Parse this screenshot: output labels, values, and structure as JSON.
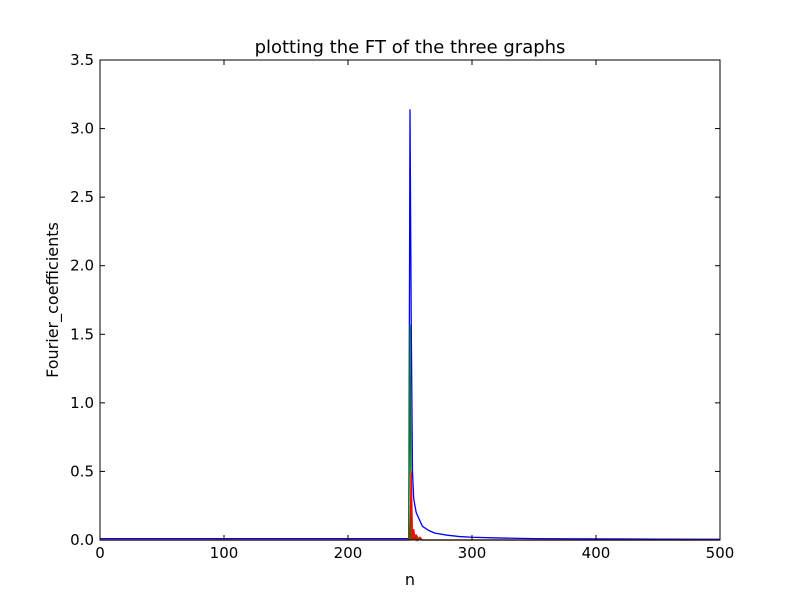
{
  "chart_data": {
    "type": "line",
    "title": "plotting the FT of the three graphs",
    "xlabel": "n",
    "ylabel": "Fourier_coefficients",
    "xlim": [
      0,
      500
    ],
    "ylim": [
      0,
      3.5
    ],
    "x_ticks": [
      0,
      100,
      200,
      300,
      400,
      500
    ],
    "x_tick_labels": [
      "0",
      "100",
      "200",
      "300",
      "400",
      "500"
    ],
    "y_ticks": [
      0.0,
      0.5,
      1.0,
      1.5,
      2.0,
      2.5,
      3.0,
      3.5
    ],
    "y_tick_labels": [
      "0.0",
      "0.5",
      "1.0",
      "1.5",
      "2.0",
      "2.5",
      "3.0",
      "3.5"
    ],
    "grid": false,
    "legend": "none",
    "series": [
      {
        "color": "#0000ff",
        "x": [
          0,
          100,
          200,
          249,
          250,
          251,
          252,
          253,
          255,
          260,
          265,
          270,
          280,
          290,
          300,
          320,
          350,
          400,
          450,
          500
        ],
        "y": [
          0.01,
          0.01,
          0.01,
          0.01,
          3.14,
          1.57,
          0.5,
          0.3,
          0.2,
          0.1,
          0.07,
          0.05,
          0.035,
          0.025,
          0.02,
          0.015,
          0.01,
          0.008,
          0.006,
          0.005
        ]
      },
      {
        "color": "#008000",
        "x": [
          0,
          100,
          200,
          249,
          250,
          251,
          252,
          253,
          254,
          255,
          256,
          257,
          258,
          260,
          270,
          300,
          400,
          500
        ],
        "y": [
          0.0,
          0.0,
          0.0,
          0.0,
          1.57,
          0.0,
          0.05,
          0.0,
          0.03,
          0.0,
          0.02,
          0.0,
          0.01,
          0.0,
          0.0,
          0.0,
          0.0,
          0.0
        ]
      },
      {
        "color": "#ff0000",
        "x": [
          0,
          100,
          200,
          249,
          250,
          251,
          252,
          253,
          254,
          255,
          256,
          258,
          260,
          265,
          270,
          300,
          400,
          500
        ],
        "y": [
          0.0,
          0.0,
          0.0,
          0.0,
          0.0,
          0.5,
          0.0,
          0.08,
          0.0,
          0.04,
          0.0,
          0.02,
          0.0,
          0.0,
          0.0,
          0.0,
          0.0,
          0.0
        ]
      }
    ]
  }
}
